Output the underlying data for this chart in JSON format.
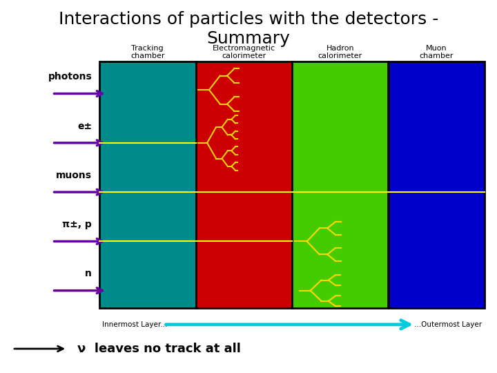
{
  "title": "Interactions of particles with the detectors -\nSummary",
  "title_fontsize": 18,
  "bg_color": "#ffffff",
  "detector_labels": [
    "Tracking\nchamber",
    "Electromagnetic\ncalorimeter",
    "Hadron\ncalorimeter",
    "Muon\nchamber"
  ],
  "detector_colors": [
    "#008B8B",
    "#CC0000",
    "#44CC00",
    "#0000CC"
  ],
  "particle_labels": [
    "photons",
    "e±",
    "muons",
    "π±, p",
    "n"
  ],
  "arrow_color": "#6600AA",
  "line_color": "#FFFF00",
  "tree_color": "#FFD700",
  "nu_text": "ν  leaves no track at all",
  "innermost_label": "Innermost Layer...",
  "outermost_label": "...Outermost Layer"
}
